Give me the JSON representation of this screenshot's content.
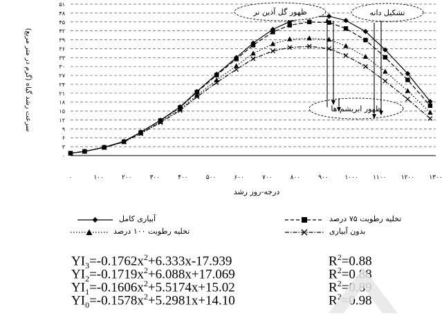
{
  "chart_data": {
    "type": "line",
    "xlabel": "درجه-روز رشد",
    "ylabel": "سرعت رشد گیاه (گرم در متر مربع)",
    "xlim": [
      0,
      1300
    ],
    "ylim": [
      0,
      51
    ],
    "x_ticks": [
      "۰",
      "۱۰۰",
      "۲۰۰",
      "۳۰۰",
      "۴۰۰",
      "۵۰۰",
      "۶۰۰",
      "۷۰۰",
      "۸۰۰",
      "۹۰۰",
      "۱۰۰۰",
      "۱۱۰۰",
      "۱۲۰۰",
      "۱۳۰۰"
    ],
    "y_ticks": [
      {
        "v": 0,
        "t": "۰"
      },
      {
        "v": 3,
        "t": "۳"
      },
      {
        "v": 6,
        "t": "۶"
      },
      {
        "v": 9,
        "t": "۹"
      },
      {
        "v": 12,
        "t": "۱۲"
      },
      {
        "v": 15,
        "t": "۱۵"
      },
      {
        "v": 18,
        "t": "۱۸"
      },
      {
        "v": 21,
        "t": "۲۱"
      },
      {
        "v": 24,
        "t": "۲۴"
      },
      {
        "v": 27,
        "t": "۲۷"
      },
      {
        "v": 30,
        "t": "۳۰"
      },
      {
        "v": 33,
        "t": "۳۳"
      },
      {
        "v": 36,
        "t": "۳۶"
      },
      {
        "v": 39,
        "t": "۳۹"
      },
      {
        "v": 42,
        "t": "۴۲"
      },
      {
        "v": 45,
        "t": "۴۵"
      },
      {
        "v": 48,
        "t": "۴۸"
      },
      {
        "v": 51,
        "t": "۵۱"
      }
    ],
    "grid": true,
    "x": [
      0,
      50,
      120,
      190,
      250,
      320,
      390,
      450,
      520,
      590,
      650,
      720,
      780,
      850,
      920,
      980,
      1050,
      1120,
      1200,
      1280
    ],
    "series": [
      {
        "name": "آبیاری کامل",
        "marker": "diamond",
        "dash": "solid",
        "values": [
          0.8,
          1.4,
          2.8,
          4.8,
          7.9,
          11.9,
          16.4,
          21.6,
          27.4,
          33.0,
          37.9,
          42.5,
          45.1,
          46.8,
          46.9,
          45.5,
          41.8,
          35.6,
          27.6,
          18.2
        ]
      },
      {
        "name": "تخلیه رطوبت ۷۵ درصد",
        "marker": "square",
        "dash": "dashed",
        "values": [
          0.8,
          1.4,
          2.8,
          4.7,
          7.8,
          11.8,
          16.2,
          21.4,
          27.1,
          32.5,
          37.2,
          41.6,
          43.9,
          45.0,
          44.8,
          42.8,
          38.9,
          33.1,
          25.5,
          16.8
        ]
      },
      {
        "name": "تخلیه رطوبت ۱۰۰ درصد",
        "marker": "triangle",
        "dash": "dotted",
        "values": [
          0.8,
          1.4,
          2.7,
          4.6,
          7.5,
          11.4,
          15.6,
          20.3,
          25.4,
          30.2,
          34.4,
          37.6,
          39.2,
          39.5,
          39.1,
          36.9,
          33.3,
          28.3,
          21.8,
          14.5
        ]
      },
      {
        "name": "بدون آبیاری",
        "marker": "x",
        "dash": "dashdot",
        "values": [
          0.8,
          1.4,
          2.7,
          4.6,
          7.4,
          11.1,
          15.2,
          19.8,
          24.6,
          29.0,
          32.6,
          35.2,
          36.4,
          36.8,
          36.0,
          33.7,
          30.0,
          25.1,
          19.0,
          12.5
        ]
      }
    ],
    "annotations": [
      {
        "label": "ظهور گل آذین نر"
      },
      {
        "label": "تشکیل دانه"
      },
      {
        "label": "ظهور ابریشم ها"
      }
    ],
    "equations": [
      {
        "lhs": "YI",
        "sub": "3",
        "eq": "=-0.1762x",
        "sup": "2",
        "rest": "+6.333x-17.939",
        "r2": "=0.88"
      },
      {
        "lhs": "YI",
        "sub": "2",
        "eq": "=-0.1719x",
        "sup": "2",
        "rest": "+6.088x+17.069",
        "r2": "=0.88"
      },
      {
        "lhs": "YI",
        "sub": "1",
        "eq": "=-0.1606x",
        "sup": "2",
        "rest": "+5.5174x+15.02",
        "r2": "=0.89"
      },
      {
        "lhs": "YI",
        "sub": "0",
        "eq": "=-0.1578x",
        "sup": "2",
        "rest": "+5.2981x+14.10",
        "r2": "=0.98"
      }
    ],
    "r2_label": "R"
  }
}
